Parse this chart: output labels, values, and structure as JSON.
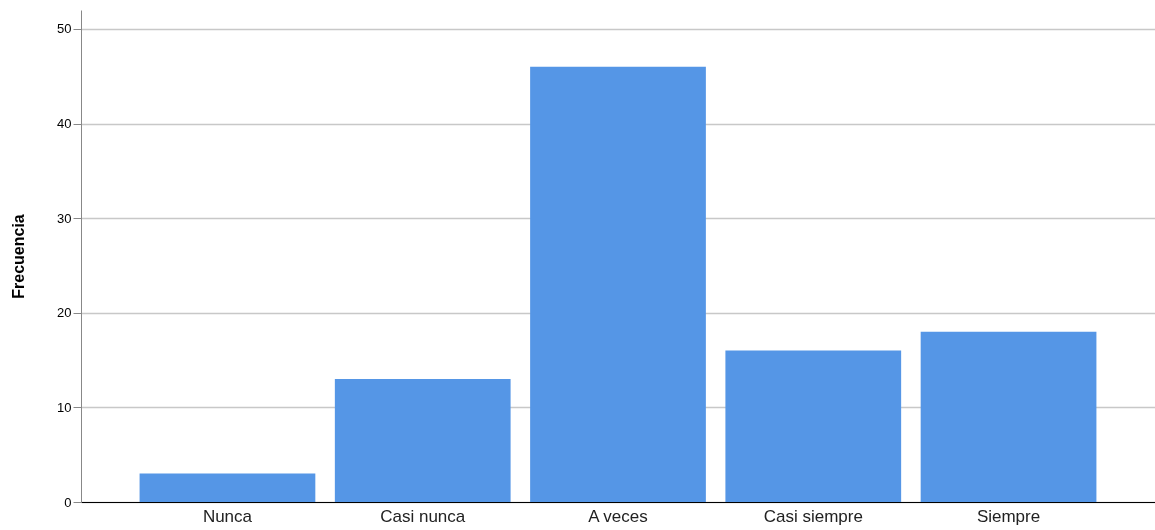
{
  "chart_data": {
    "type": "bar",
    "ylabel": "Frecuencia",
    "categories": [
      "Nunca",
      "Casi nunca",
      "A veces",
      "Casi siempre",
      "Siempre"
    ],
    "values": [
      3,
      13,
      46,
      16,
      18
    ],
    "color": "#5596e6",
    "ylim": [
      0,
      52
    ],
    "yticks": [
      0,
      10,
      20,
      30,
      40,
      50
    ],
    "grid": "y"
  }
}
